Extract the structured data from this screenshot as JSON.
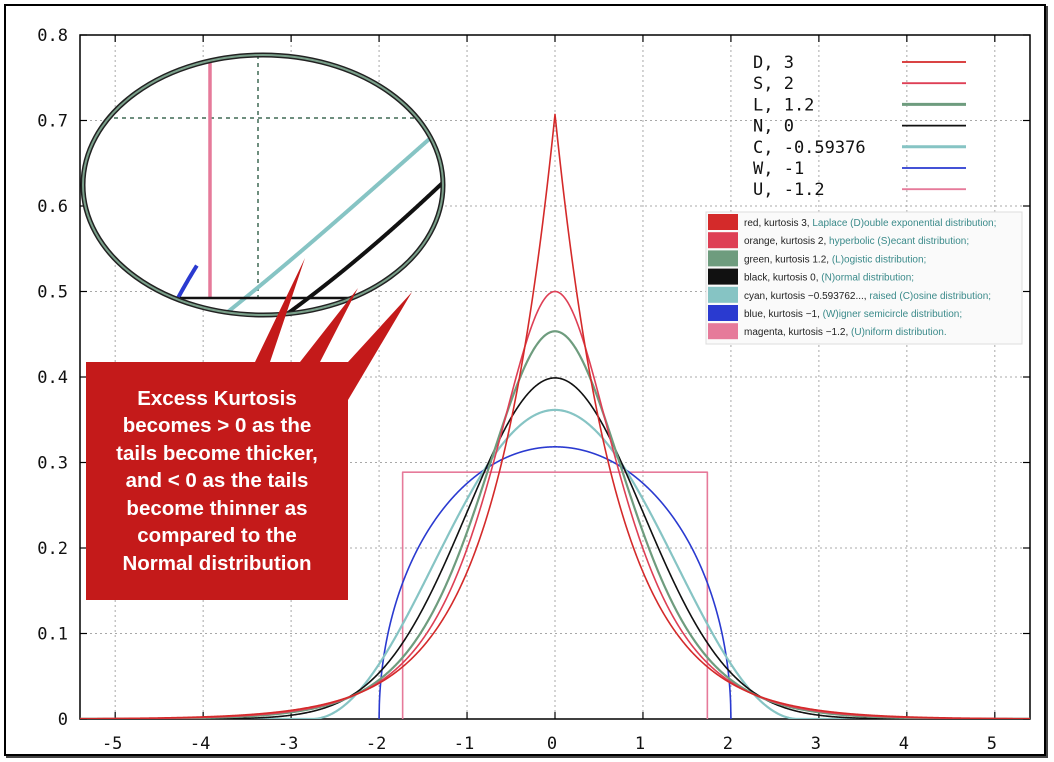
{
  "chart_data": {
    "type": "line",
    "title": "",
    "xlabel": "",
    "ylabel": "",
    "xlim": [
      -5.4,
      5.4
    ],
    "ylim": [
      0,
      0.8
    ],
    "grid": true,
    "x_ticks": [
      "-5",
      "-4",
      "-3",
      "-2",
      "-1",
      "0",
      "1",
      "2",
      "3",
      "4",
      "5"
    ],
    "y_ticks": [
      "0",
      "0.1",
      "0.2",
      "0.3",
      "0.4",
      "0.5",
      "0.6",
      "0.7",
      "0.8"
    ],
    "legend_position": "top-right",
    "series": [
      {
        "name": "D,  3",
        "kurtosis": 3,
        "color": "#d42a2a",
        "description": {
          "lead": "red, kurtosis 3, ",
          "dist": "Laplace (D)ouble exponential distribution;"
        }
      },
      {
        "name": "S,  2",
        "kurtosis": 2,
        "color": "#de3f55",
        "description": {
          "lead": "orange, kurtosis 2, ",
          "dist": "hyperbolic (S)ecant distribution;"
        }
      },
      {
        "name": "L,  1.2",
        "kurtosis": 1.2,
        "color": "#6e9c7e",
        "description": {
          "lead": "green, kurtosis 1.2, ",
          "dist": "(L)ogistic distribution;"
        }
      },
      {
        "name": "N,  0",
        "kurtosis": 0,
        "color": "#111111",
        "description": {
          "lead": "black, kurtosis 0, ",
          "dist": "(N)ormal distribution;"
        }
      },
      {
        "name": "C,  -0.59376",
        "kurtosis": -0.59376,
        "color": "#86c4c4",
        "description": {
          "lead": "cyan, kurtosis −0.593762..., ",
          "dist": "raised (C)osine distribution;"
        }
      },
      {
        "name": "W,  -1",
        "kurtosis": -1,
        "color": "#2a3ad0",
        "description": {
          "lead": "blue, kurtosis −1, ",
          "dist": "(W)igner semicircle distribution;"
        }
      },
      {
        "name": "U,  -1.2",
        "kurtosis": -1.2,
        "color": "#e67a9a",
        "description": {
          "lead": "magenta, kurtosis −1.2, ",
          "dist": "(U)niform distribution."
        }
      }
    ]
  },
  "callout": {
    "lines": [
      "Excess Kurtosis",
      "becomes > 0 as the",
      "tails become thicker,",
      "and < 0 as the tails",
      "become thinner as",
      "compared to  the",
      "Normal distribution"
    ],
    "fill": "#c41a1a"
  }
}
